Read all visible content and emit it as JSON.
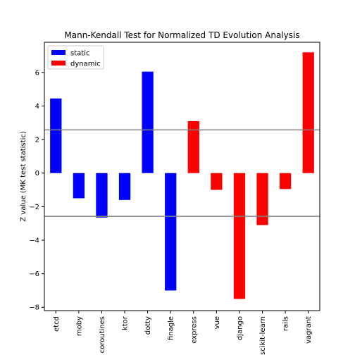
{
  "chart_data": {
    "type": "bar",
    "title": "Mann-Kendall Test for Normalized TD Evolution Analysis",
    "xlabel": "",
    "ylabel": "Z value (MK test statistic)",
    "ylim": [
      -8.2,
      7.8
    ],
    "yticks": [
      -8,
      -6,
      -4,
      -2,
      0,
      2,
      4,
      6
    ],
    "categories": [
      "etcd",
      "moby",
      "coroutines",
      "ktor",
      "dotty",
      "finagle",
      "express",
      "vue",
      "django",
      "scikit-learn",
      "rails",
      "vagrant"
    ],
    "values": [
      4.45,
      -1.5,
      -2.65,
      -1.6,
      6.05,
      -7.0,
      3.1,
      -1.0,
      -7.5,
      -3.1,
      -0.95,
      7.2
    ],
    "bar_groups": [
      "static",
      "static",
      "static",
      "static",
      "static",
      "static",
      "dynamic",
      "dynamic",
      "dynamic",
      "dynamic",
      "dynamic",
      "dynamic"
    ],
    "series": [
      {
        "name": "static",
        "color": "#0000ff"
      },
      {
        "name": "dynamic",
        "color": "#ff0000"
      }
    ],
    "reference_lines": [
      2.576,
      -2.576
    ],
    "reference_line_color": "#808080",
    "legend_placement": "top-left",
    "grid": false
  }
}
